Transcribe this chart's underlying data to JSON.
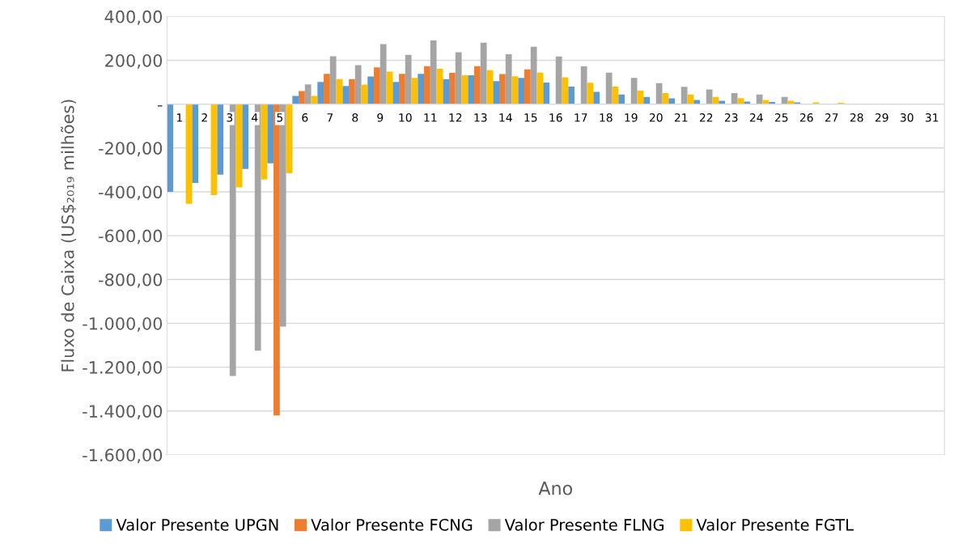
{
  "chart_data": {
    "type": "bar",
    "xlabel": "Ano",
    "ylabel": "Fluxo de Caixa (US$₂₀₁₉ milhões)",
    "categories": [
      "1",
      "2",
      "3",
      "4",
      "5",
      "6",
      "7",
      "8",
      "9",
      "10",
      "11",
      "12",
      "13",
      "14",
      "15",
      "16",
      "17",
      "18",
      "19",
      "20",
      "21",
      "22",
      "23",
      "24",
      "25",
      "26",
      "27",
      "28",
      "29",
      "30",
      "31"
    ],
    "series": [
      {
        "name": "Valor Presente UPGN",
        "color": "#5b9bd5",
        "values": [
          -400,
          -360,
          -322,
          -296,
          -270,
          37,
          101,
          83,
          126,
          101,
          138,
          114,
          132,
          105,
          120,
          98,
          80,
          56,
          44,
          33,
          26,
          19,
          15,
          12,
          10,
          8,
          0,
          0,
          0,
          0,
          0
        ]
      },
      {
        "name": "Valor Presente FCNG",
        "color": "#ed7d31",
        "values": [
          0,
          0,
          0,
          0,
          -1420,
          60,
          138,
          114,
          168,
          138,
          173,
          143,
          173,
          137,
          158,
          0,
          0,
          0,
          0,
          0,
          0,
          0,
          0,
          0,
          0,
          0,
          0,
          0,
          0,
          0,
          0
        ]
      },
      {
        "name": "Valor Presente FLNG",
        "color": "#a5a5a5",
        "values": [
          0,
          0,
          -1240,
          -1125,
          -1015,
          90,
          218,
          178,
          274,
          225,
          290,
          237,
          280,
          228,
          262,
          217,
          172,
          144,
          120,
          96,
          79,
          67,
          50,
          44,
          33,
          0,
          0,
          0,
          0,
          0,
          0
        ]
      },
      {
        "name": "Valor Presente FGTL",
        "color": "#ffc000",
        "values": [
          -455,
          -415,
          -380,
          -344,
          -315,
          37,
          114,
          89,
          148,
          120,
          161,
          132,
          155,
          127,
          144,
          122,
          97,
          80,
          61,
          50,
          44,
          33,
          27,
          19,
          15,
          8,
          6,
          0,
          0,
          0,
          0
        ]
      }
    ],
    "ylim": [
      -1600,
      400
    ],
    "yticks": [
      {
        "value": -1600,
        "label": "-1.600,00"
      },
      {
        "value": -1400,
        "label": "-1.400,00"
      },
      {
        "value": -1200,
        "label": "-1.200,00"
      },
      {
        "value": -1000,
        "label": "-1.000,00"
      },
      {
        "value": -800,
        "label": "-800,00"
      },
      {
        "value": -600,
        "label": "-600,00"
      },
      {
        "value": -400,
        "label": "-400,00"
      },
      {
        "value": -200,
        "label": "-200,00"
      },
      {
        "value": 0,
        "label": "-"
      },
      {
        "value": 200,
        "label": "200,00"
      },
      {
        "value": 400,
        "label": "400,00"
      }
    ],
    "grid": "y",
    "legend": "bottom"
  }
}
